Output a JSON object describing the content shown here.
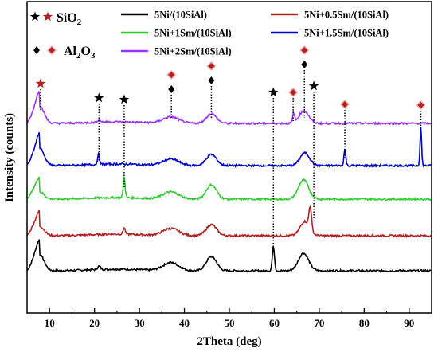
{
  "chart_data": {
    "type": "line",
    "xlabel": "2Theta (deg)",
    "ylabel": "Intensity (counts)",
    "xlim": [
      5,
      95
    ],
    "xticks": [
      10,
      20,
      30,
      40,
      50,
      60,
      70,
      80,
      90
    ],
    "y_ticks_shown": false,
    "grid": false,
    "legend_position": "top",
    "phase_legend": [
      {
        "label": "SiO",
        "subscript": "2",
        "marker": "star",
        "colors": [
          "#000000",
          "#b22222"
        ]
      },
      {
        "label": "Al",
        "subscript": "2",
        "suffix": "O",
        "subscript2": "3",
        "marker": "diamond",
        "colors": [
          "#000000",
          "#b22222"
        ]
      }
    ],
    "series": [
      {
        "name": "5Ni/(10SiAl)",
        "color": "#000000",
        "offset": 0,
        "peaks": [
          [
            7.8,
            20,
            1.4
          ],
          [
            21,
            4,
            0.5
          ],
          [
            37,
            10,
            2.5
          ],
          [
            46,
            18,
            1.6
          ],
          [
            59.8,
            30,
            0.35
          ],
          [
            66.5,
            22,
            1.6
          ]
        ]
      },
      {
        "name": "5Ni+0.5Sm/(10SiAl)",
        "color": "#b22222",
        "offset": 1,
        "peaks": [
          [
            7.8,
            12,
            1.4
          ],
          [
            26.6,
            8,
            0.35
          ],
          [
            37,
            9,
            2.5
          ],
          [
            46,
            14,
            1.6
          ],
          [
            66.8,
            18,
            1.5
          ],
          [
            68,
            28,
            0.4
          ]
        ]
      },
      {
        "name": "5Ni+1Sm/(10SiAl)",
        "color": "#33cc33",
        "offset": 2,
        "peaks": [
          [
            7.8,
            9,
            1.4
          ],
          [
            26.6,
            26,
            0.3
          ],
          [
            37,
            9,
            2.5
          ],
          [
            46,
            18,
            1.6
          ],
          [
            66.5,
            24,
            1.6
          ]
        ]
      },
      {
        "name": "5Ni+1.5Sm/(10SiAl)",
        "color": "#0000cc",
        "offset": 3,
        "peaks": [
          [
            7.8,
            22,
            1.4
          ],
          [
            20.9,
            14,
            0.3
          ],
          [
            37,
            8,
            2.5
          ],
          [
            46,
            14,
            1.6
          ],
          [
            66.8,
            16,
            1.5
          ],
          [
            75.7,
            20,
            0.3
          ],
          [
            92.6,
            48,
            0.25
          ]
        ]
      },
      {
        "name": "5Ni+2Sm/(10SiAl)",
        "color": "#9933ff",
        "offset": 4,
        "peaks": [
          [
            7.8,
            22,
            1.4
          ],
          [
            21,
            3,
            0.5
          ],
          [
            37,
            8,
            2.5
          ],
          [
            46,
            12,
            1.6
          ],
          [
            64.3,
            12,
            0.3
          ],
          [
            66.6,
            16,
            1.5
          ]
        ]
      }
    ],
    "annotations": [
      {
        "marker": "star",
        "color": "#b22222",
        "x": 8
      },
      {
        "marker": "star",
        "color": "#000000",
        "x": 21
      },
      {
        "marker": "star",
        "color": "#000000",
        "x": 26.6
      },
      {
        "marker": "diamond",
        "color": "#b22222",
        "x": 37.1
      },
      {
        "marker": "diamond",
        "color": "#000000",
        "x": 37.1
      },
      {
        "marker": "diamond",
        "color": "#b22222",
        "x": 46
      },
      {
        "marker": "diamond",
        "color": "#000000",
        "x": 46
      },
      {
        "marker": "star",
        "color": "#000000",
        "x": 59.8
      },
      {
        "marker": "diamond",
        "color": "#b22222",
        "x": 64.2
      },
      {
        "marker": "diamond",
        "color": "#b22222",
        "x": 66.7
      },
      {
        "marker": "diamond",
        "color": "#000000",
        "x": 66.7
      },
      {
        "marker": "star",
        "color": "#000000",
        "x": 68.8
      },
      {
        "marker": "diamond",
        "color": "#b22222",
        "x": 75.7
      },
      {
        "marker": "diamond",
        "color": "#b22222",
        "x": 92.6
      }
    ]
  }
}
